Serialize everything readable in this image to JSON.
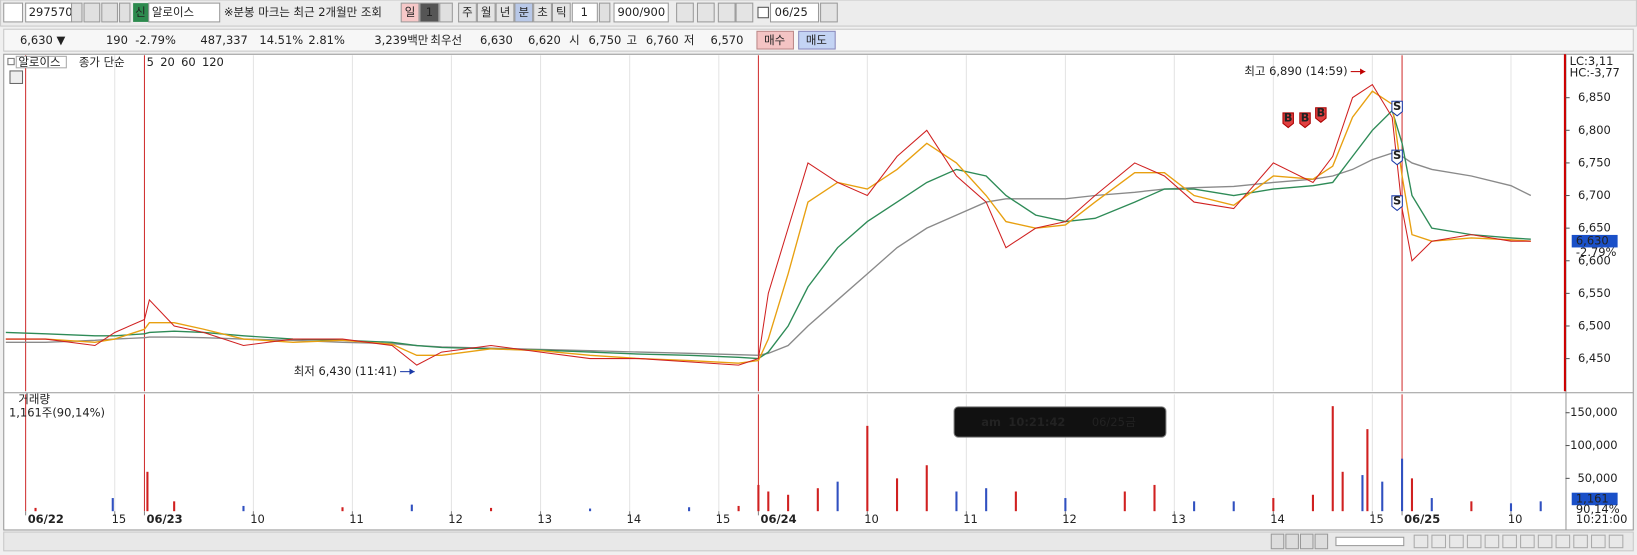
{
  "toolbar": {
    "code": "297570",
    "badge": "신",
    "name": "알로이스",
    "notice": "※분봉 마크는 최근 2개월만 조회",
    "periods": [
      "일",
      "1",
      "주",
      "월",
      "년",
      "분",
      "초",
      "틱"
    ],
    "interval": "1",
    "count": "900/900",
    "date": "06/25"
  },
  "info_bar": [
    "6,630 ▼",
    "190",
    "-2.79%",
    "487,337",
    "14.51%",
    "2.81%",
    "3,239백만",
    "최우선",
    "6,630",
    "6,620",
    "시",
    "6,750",
    "고",
    "6,760",
    "저",
    "6,570",
    "매수",
    "매도"
  ],
  "chart_data": [
    {
      "type": "line",
      "title": "알로이스",
      "legend_label": "종가 단순",
      "legend_extra": "120",
      "color": "#d02020",
      "x": [
        -1.4,
        -1.0,
        -0.5,
        -0.3,
        0,
        0.05,
        0.3,
        0.6,
        1.0,
        1.5,
        2.0,
        2.5,
        2.75,
        3.0,
        3.5,
        4.0,
        4.5,
        5.0,
        5.5,
        6.0,
        6.2,
        6.3,
        6.5,
        6.7,
        7.0,
        7.3,
        7.6,
        7.9,
        8.2,
        8.5,
        8.7,
        9.0,
        9.3,
        9.6,
        10.0,
        10.3,
        10.6,
        11.0,
        11.4,
        11.8,
        12.0,
        12.2,
        12.4,
        12.6,
        12.7,
        12.8,
        13.0,
        13.4,
        13.8,
        14.0
      ],
      "values": [
        6480,
        6480,
        6470,
        6490,
        6510,
        6540,
        6500,
        6490,
        6470,
        6480,
        6480,
        6470,
        6440,
        6460,
        6470,
        6460,
        6450,
        6450,
        6445,
        6440,
        6450,
        6550,
        6650,
        6750,
        6720,
        6700,
        6760,
        6800,
        6730,
        6690,
        6620,
        6650,
        6660,
        6700,
        6750,
        6730,
        6690,
        6680,
        6750,
        6720,
        6760,
        6850,
        6870,
        6820,
        6680,
        6600,
        6630,
        6640,
        6630,
        6630
      ],
      "series": [
        {
          "name": "5",
          "color": "#e8a010",
          "values": [
            6480,
            6480,
            6475,
            6480,
            6495,
            6505,
            6505,
            6495,
            6480,
            6475,
            6478,
            6472,
            6455,
            6455,
            6465,
            6462,
            6455,
            6450,
            6447,
            6443,
            6447,
            6480,
            6580,
            6690,
            6720,
            6710,
            6740,
            6780,
            6750,
            6700,
            6660,
            6650,
            6655,
            6690,
            6735,
            6735,
            6700,
            6685,
            6730,
            6725,
            6745,
            6820,
            6860,
            6840,
            6730,
            6640,
            6630,
            6635,
            6632,
            6630
          ]
        },
        {
          "name": "20",
          "color": "#2e8b57",
          "values": [
            6490,
            6488,
            6485,
            6485,
            6488,
            6490,
            6492,
            6490,
            6485,
            6480,
            6478,
            6475,
            6470,
            6467,
            6465,
            6463,
            6460,
            6457,
            6455,
            6452,
            6450,
            6460,
            6500,
            6560,
            6620,
            6660,
            6690,
            6720,
            6740,
            6730,
            6700,
            6670,
            6660,
            6665,
            6690,
            6710,
            6710,
            6700,
            6710,
            6715,
            6720,
            6760,
            6800,
            6830,
            6780,
            6700,
            6650,
            6640,
            6635,
            6633
          ]
        },
        {
          "name": "60",
          "color": "#8a8a8a",
          "values": [
            6475,
            6475,
            6478,
            6480,
            6482,
            6483,
            6483,
            6482,
            6480,
            6478,
            6475,
            6473,
            6470,
            6468,
            6466,
            6464,
            6462,
            6460,
            6458,
            6456,
            6455,
            6458,
            6470,
            6500,
            6540,
            6580,
            6620,
            6650,
            6670,
            6690,
            6695,
            6695,
            6695,
            6700,
            6705,
            6710,
            6712,
            6714,
            6720,
            6725,
            6730,
            6740,
            6755,
            6765,
            6760,
            6750,
            6740,
            6730,
            6715,
            6700
          ]
        }
      ],
      "xlim": [
        -1.4,
        14.35
      ],
      "ylim": [
        6400,
        6915
      ],
      "yticks": [
        {
          "value": 6450,
          "label": "6,450"
        },
        {
          "value": 6500,
          "label": "6,500"
        },
        {
          "value": 6550,
          "label": "6,550"
        },
        {
          "value": 6600,
          "label": "6,600"
        },
        {
          "value": 6650,
          "label": "6,650"
        },
        {
          "value": 6700,
          "label": "6,700"
        },
        {
          "value": 6750,
          "label": "6,750"
        },
        {
          "value": 6800,
          "label": "6,800"
        },
        {
          "value": 6850,
          "label": "6,850"
        }
      ],
      "last": {
        "value": 6630,
        "label": "6,630",
        "change": "-2.79%"
      },
      "lc": "LC:3,11",
      "hc": "HC:-3,77",
      "annotations": [
        {
          "text": "최고 6,890 (14:59)",
          "x": 12.35,
          "y": 6890
        },
        {
          "text": "최저 6,430 (11:41)",
          "x": 2.75,
          "y": 6430
        }
      ],
      "signals": [
        {
          "label": "B",
          "x": 11.55,
          "y": 6817
        },
        {
          "label": "B",
          "x": 11.72,
          "y": 6817
        },
        {
          "label": "B",
          "x": 11.88,
          "y": 6825
        },
        {
          "label": "S",
          "x": 12.65,
          "y": 6835
        },
        {
          "label": "S",
          "x": 12.65,
          "y": 6760
        },
        {
          "label": "S",
          "x": 12.65,
          "y": 6690
        }
      ]
    },
    {
      "type": "bar",
      "title": "거래량",
      "subtitle": "1,161주(90,14%)",
      "x": [
        -1.1,
        -0.32,
        0.03,
        0.3,
        1.0,
        2.0,
        2.7,
        3.5,
        4.5,
        5.5,
        6.0,
        6.2,
        6.3,
        6.5,
        6.8,
        7.0,
        7.3,
        7.6,
        7.9,
        8.2,
        8.5,
        8.8,
        9.3,
        9.9,
        10.2,
        10.6,
        11.0,
        11.4,
        11.8,
        12.0,
        12.1,
        12.3,
        12.35,
        12.5,
        12.7,
        12.8,
        13.0,
        13.4,
        13.8,
        14.1
      ],
      "values": [
        5000,
        20000,
        60000,
        15000,
        8000,
        6000,
        10000,
        5000,
        4000,
        6000,
        8000,
        40000,
        30000,
        25000,
        35000,
        45000,
        130000,
        50000,
        70000,
        30000,
        35000,
        30000,
        20000,
        30000,
        40000,
        15000,
        15000,
        20000,
        25000,
        160000,
        60000,
        55000,
        125000,
        45000,
        80000,
        50000,
        20000,
        15000,
        12000,
        15000
      ],
      "colors": [
        "#d02020",
        "#3050c0",
        "#d02020",
        "#d02020",
        "#3050c0",
        "#d02020",
        "#3050c0",
        "#d02020",
        "#3050c0",
        "#3050c0",
        "#d02020",
        "#d02020",
        "#d02020",
        "#d02020",
        "#d02020",
        "#3050c0",
        "#d02020",
        "#d02020",
        "#d02020",
        "#3050c0",
        "#3050c0",
        "#d02020",
        "#3050c0",
        "#d02020",
        "#d02020",
        "#3050c0",
        "#3050c0",
        "#d02020",
        "#d02020",
        "#d02020",
        "#d02020",
        "#3050c0",
        "#d02020",
        "#3050c0",
        "#3050c0",
        "#d02020",
        "#3050c0",
        "#d02020",
        "#3050c0",
        "#3050c0"
      ],
      "xlim": [
        -1.4,
        14.35
      ],
      "ylim": [
        0,
        178000
      ],
      "yticks": [
        {
          "value": 50000,
          "label": "50,000"
        },
        {
          "value": 100000,
          "label": "100,000"
        },
        {
          "value": 150000,
          "label": "150,000"
        }
      ],
      "xticks": [
        {
          "value": -1.2,
          "label": "06/22"
        },
        {
          "value": -0.3,
          "label": "15"
        },
        {
          "value": 0,
          "label": "06/23"
        },
        {
          "value": 1.1,
          "label": "10"
        },
        {
          "value": 2.1,
          "label": "11"
        },
        {
          "value": 3.1,
          "label": "12"
        },
        {
          "value": 4.0,
          "label": "13"
        },
        {
          "value": 4.9,
          "label": "14"
        },
        {
          "value": 5.8,
          "label": "15"
        },
        {
          "value": 6.2,
          "label": "06/24"
        },
        {
          "value": 7.3,
          "label": "10"
        },
        {
          "value": 8.3,
          "label": "11"
        },
        {
          "value": 9.3,
          "label": "12"
        },
        {
          "value": 10.4,
          "label": "13"
        },
        {
          "value": 11.4,
          "label": "14"
        },
        {
          "value": 12.4,
          "label": "15"
        },
        {
          "value": 12.7,
          "label": "06/25"
        },
        {
          "value": 13.8,
          "label": "10"
        }
      ],
      "grid": true,
      "last": {
        "value": 1161,
        "label": "1,161",
        "change": "90,14%"
      },
      "time_label": "10:21:00"
    }
  ],
  "clock": {
    "ampm": "am",
    "time": "10:21:42",
    "date": "06/25",
    "weekday": "금"
  }
}
